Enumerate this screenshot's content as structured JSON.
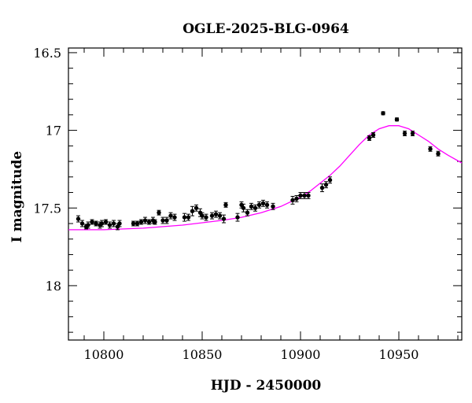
{
  "chart_data": {
    "type": "scatter",
    "title": "OGLE-2025-BLG-0964",
    "xlabel": "HJD - 2450000",
    "ylabel": "I magnitude",
    "xlim": [
      10782,
      10982
    ],
    "ylim": [
      18.35,
      16.47
    ],
    "y_inverted": true,
    "x_ticks": [
      10800,
      10850,
      10900,
      10950
    ],
    "x_tick_labels": [
      "10800",
      "10850",
      "10900",
      "10950"
    ],
    "y_ticks": [
      16.5,
      17,
      17.5,
      18
    ],
    "y_tick_labels": [
      "16.5",
      "17",
      "17.5",
      "18"
    ],
    "grid": false,
    "colors": {
      "points": "#000000",
      "model": "#ff00ff",
      "frame": "#000000"
    },
    "series": [
      {
        "kind": "points",
        "x": [
          10787,
          10789,
          10791,
          10792,
          10794,
          10796,
          10798,
          10799,
          10801,
          10803,
          10805,
          10807,
          10808,
          10815,
          10817,
          10819,
          10821,
          10823,
          10825,
          10826,
          10828,
          10830,
          10832,
          10834,
          10836,
          10841,
          10843,
          10845,
          10847,
          10849,
          10850,
          10852,
          10855,
          10857,
          10859,
          10861,
          10862,
          10868,
          10870,
          10871,
          10873,
          10875,
          10877,
          10879,
          10881,
          10883,
          10886,
          10896,
          10898,
          10900,
          10902,
          10904,
          10911,
          10913,
          10915,
          10935,
          10937,
          10942,
          10949,
          10953,
          10957,
          10966,
          10970
        ],
        "y": [
          17.57,
          17.6,
          17.62,
          17.61,
          17.59,
          17.6,
          17.61,
          17.6,
          17.59,
          17.61,
          17.6,
          17.62,
          17.6,
          17.6,
          17.6,
          17.59,
          17.58,
          17.59,
          17.58,
          17.59,
          17.53,
          17.58,
          17.58,
          17.55,
          17.56,
          17.56,
          17.56,
          17.52,
          17.5,
          17.53,
          17.55,
          17.56,
          17.55,
          17.54,
          17.55,
          17.57,
          17.48,
          17.56,
          17.48,
          17.5,
          17.53,
          17.49,
          17.5,
          17.48,
          17.47,
          17.48,
          17.49,
          17.45,
          17.44,
          17.42,
          17.42,
          17.42,
          17.37,
          17.35,
          17.32,
          17.05,
          17.03,
          16.89,
          16.93,
          17.02,
          17.02,
          17.12,
          17.15
        ],
        "err": [
          0.02,
          0.02,
          0.015,
          0.02,
          0.015,
          0.015,
          0.02,
          0.02,
          0.015,
          0.02,
          0.02,
          0.02,
          0.02,
          0.015,
          0.015,
          0.015,
          0.02,
          0.015,
          0.02,
          0.015,
          0.015,
          0.02,
          0.02,
          0.02,
          0.02,
          0.025,
          0.02,
          0.03,
          0.02,
          0.025,
          0.02,
          0.02,
          0.02,
          0.02,
          0.02,
          0.025,
          0.015,
          0.025,
          0.02,
          0.025,
          0.02,
          0.02,
          0.02,
          0.02,
          0.02,
          0.02,
          0.02,
          0.025,
          0.02,
          0.02,
          0.02,
          0.02,
          0.025,
          0.02,
          0.02,
          0.015,
          0.015,
          0.01,
          0.01,
          0.015,
          0.015,
          0.015,
          0.015
        ]
      },
      {
        "kind": "model",
        "x": [
          10782,
          10800,
          10820,
          10840,
          10860,
          10870,
          10880,
          10890,
          10900,
          10905,
          10910,
          10915,
          10920,
          10925,
          10930,
          10935,
          10940,
          10945,
          10950,
          10955,
          10960,
          10965,
          10970,
          10975,
          10982
        ],
        "y": [
          17.64,
          17.64,
          17.63,
          17.61,
          17.58,
          17.56,
          17.53,
          17.49,
          17.43,
          17.39,
          17.34,
          17.29,
          17.23,
          17.16,
          17.09,
          17.03,
          16.99,
          16.97,
          16.97,
          16.99,
          17.03,
          17.07,
          17.12,
          17.16,
          17.21
        ]
      }
    ]
  }
}
